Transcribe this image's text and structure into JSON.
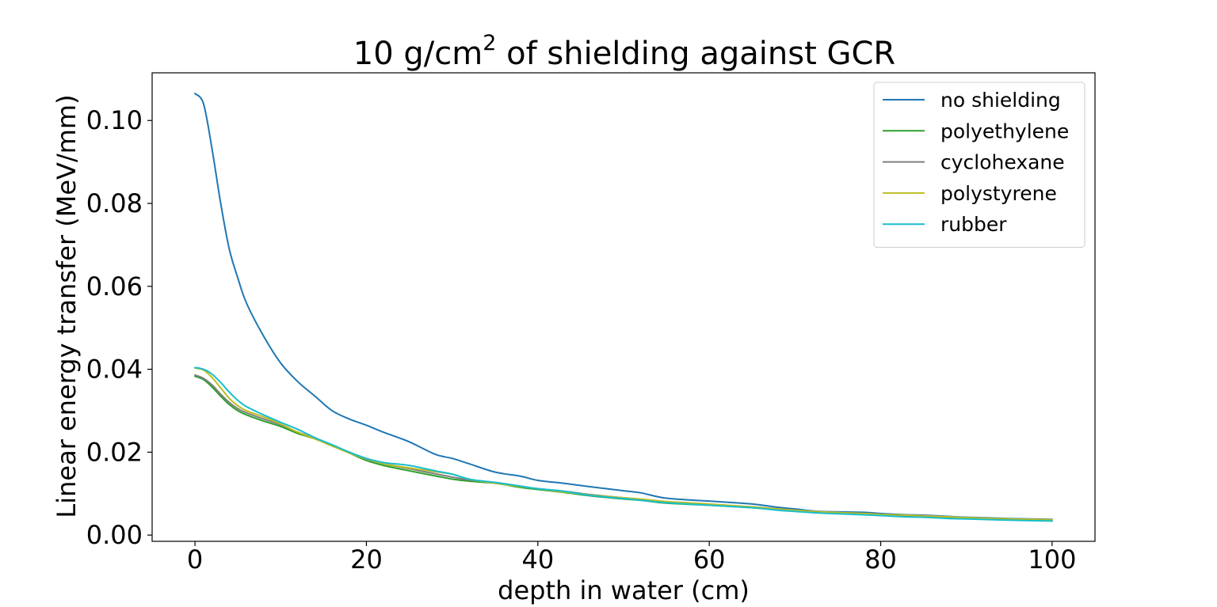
{
  "chart_data": {
    "type": "line",
    "title": "10 g/cm",
    "title_superscript": "2",
    "title_suffix": " of shielding against GCR",
    "xlabel": "depth in water (cm)",
    "ylabel": "Linear energy transfer (MeV/mm)",
    "xlim": [
      -5,
      105
    ],
    "ylim": [
      -0.0015,
      0.1115
    ],
    "x_ticks": [
      0,
      20,
      40,
      60,
      80,
      100
    ],
    "x_tick_labels": [
      "0",
      "20",
      "40",
      "60",
      "80",
      "100"
    ],
    "y_ticks": [
      0.0,
      0.02,
      0.04,
      0.06,
      0.08,
      0.1
    ],
    "y_tick_labels": [
      "0.00",
      "0.02",
      "0.04",
      "0.06",
      "0.08",
      "0.10"
    ],
    "grid": false,
    "legend_position": "top-right",
    "x": [
      0,
      1,
      2,
      3,
      4,
      5,
      6,
      8,
      10,
      12,
      14,
      16,
      18,
      20,
      22,
      25,
      28,
      30,
      32,
      35,
      38,
      40,
      43,
      46,
      50,
      52,
      55,
      60,
      65,
      68,
      70,
      73,
      78,
      80,
      83,
      85,
      88,
      90,
      95,
      100
    ],
    "series": [
      {
        "name": "no shielding",
        "color": "#1f77b4",
        "values": [
          0.1065,
          0.104,
          0.093,
          0.08,
          0.069,
          0.062,
          0.056,
          0.048,
          0.0415,
          0.037,
          0.0335,
          0.03,
          0.028,
          0.0265,
          0.0248,
          0.0225,
          0.0195,
          0.0185,
          0.0172,
          0.0152,
          0.0142,
          0.0132,
          0.0125,
          0.0117,
          0.0107,
          0.0102,
          0.0089,
          0.0082,
          0.0075,
          0.0067,
          0.0063,
          0.0057,
          0.0055,
          0.0052,
          0.0049,
          0.0048,
          0.0045,
          0.0043,
          0.004,
          0.0038
        ]
      },
      {
        "name": "polyethylene",
        "color": "#2ca02c",
        "values": [
          0.0383,
          0.0375,
          0.0357,
          0.0335,
          0.0315,
          0.03,
          0.029,
          0.0275,
          0.0262,
          0.0245,
          0.0232,
          0.0215,
          0.0198,
          0.018,
          0.0168,
          0.0155,
          0.0143,
          0.0135,
          0.013,
          0.0125,
          0.0115,
          0.011,
          0.0103,
          0.0095,
          0.0087,
          0.0084,
          0.0077,
          0.0072,
          0.0066,
          0.0061,
          0.0058,
          0.0054,
          0.005,
          0.0048,
          0.0046,
          0.0045,
          0.0042,
          0.004,
          0.0037,
          0.0035
        ]
      },
      {
        "name": "cyclohexane",
        "color": "#7f7f7f",
        "values": [
          0.0386,
          0.0378,
          0.0362,
          0.034,
          0.032,
          0.0305,
          0.0295,
          0.028,
          0.0266,
          0.0248,
          0.0234,
          0.0217,
          0.02,
          0.0183,
          0.0172,
          0.016,
          0.0148,
          0.014,
          0.0133,
          0.0127,
          0.0118,
          0.0112,
          0.0106,
          0.0098,
          0.009,
          0.0086,
          0.008,
          0.0074,
          0.0068,
          0.0063,
          0.006,
          0.0056,
          0.0052,
          0.005,
          0.0048,
          0.0047,
          0.0044,
          0.0042,
          0.0039,
          0.0037
        ]
      },
      {
        "name": "polystyrene",
        "color": "#bcbd22",
        "values": [
          0.0403,
          0.0398,
          0.038,
          0.0355,
          0.033,
          0.0312,
          0.03,
          0.0285,
          0.0268,
          0.0248,
          0.0232,
          0.0215,
          0.0198,
          0.0184,
          0.0172,
          0.0162,
          0.0153,
          0.0147,
          0.0135,
          0.0125,
          0.0117,
          0.0112,
          0.0104,
          0.0097,
          0.009,
          0.0087,
          0.0081,
          0.0075,
          0.0068,
          0.0063,
          0.006,
          0.0056,
          0.0052,
          0.005,
          0.0048,
          0.0046,
          0.0044,
          0.0042,
          0.0039,
          0.0037
        ]
      },
      {
        "name": "rubber",
        "color": "#17becf",
        "values": [
          0.0404,
          0.04,
          0.0388,
          0.0368,
          0.0345,
          0.0325,
          0.031,
          0.029,
          0.0272,
          0.0255,
          0.0235,
          0.0218,
          0.02,
          0.0185,
          0.0175,
          0.0168,
          0.0155,
          0.0147,
          0.0135,
          0.0127,
          0.0118,
          0.0112,
          0.0106,
          0.0096,
          0.0088,
          0.0084,
          0.0078,
          0.0072,
          0.0066,
          0.006,
          0.0057,
          0.0053,
          0.0049,
          0.0047,
          0.0044,
          0.0043,
          0.004,
          0.0039,
          0.0036,
          0.0034
        ]
      }
    ]
  }
}
